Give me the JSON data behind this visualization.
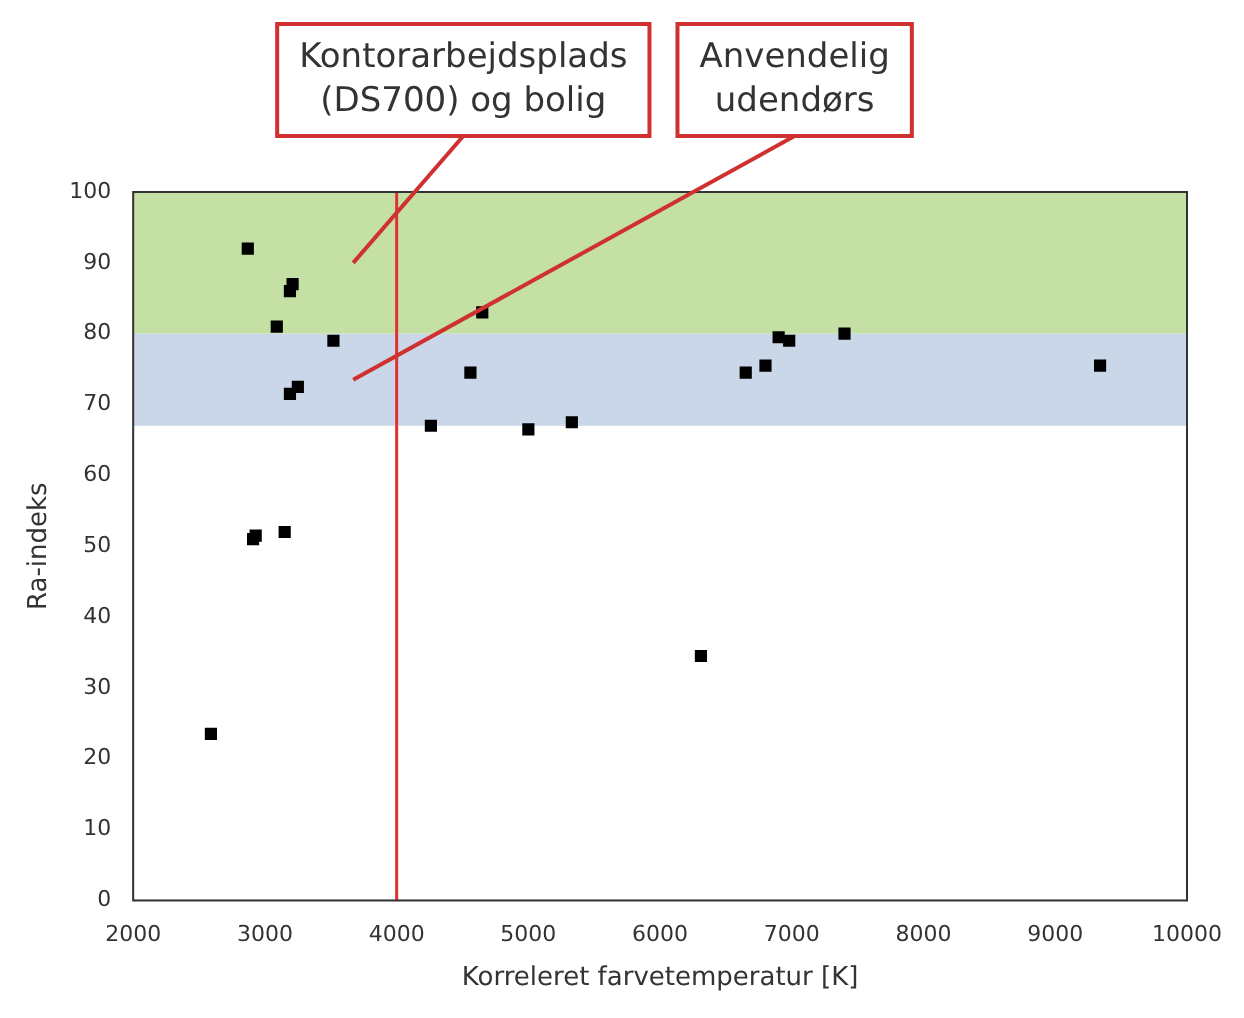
{
  "chart_data": {
    "type": "scatter",
    "xlabel": "Korreleret farvetemperatur [K]",
    "ylabel": "Ra-indeks",
    "x": [
      2590,
      2870,
      2910,
      2930,
      3090,
      3150,
      3190,
      3210,
      3190,
      3250,
      3520,
      4260,
      4560,
      4650,
      5000,
      5330,
      6310,
      6650,
      6800,
      6900,
      6980,
      7400,
      9340
    ],
    "values": [
      23.5,
      92,
      51,
      51.5,
      81,
      52,
      86,
      87,
      71.5,
      72.5,
      79,
      67,
      74.5,
      83,
      66.5,
      67.5,
      34.5,
      74.5,
      75.5,
      79.5,
      79,
      80,
      75.5
    ],
    "color": "#000000",
    "marker": "square",
    "xlim": [
      2000,
      10000
    ],
    "xticks": [
      2000,
      3000,
      4000,
      5000,
      6000,
      7000,
      8000,
      9000,
      10000
    ],
    "ylim": [
      0,
      100
    ],
    "yticks": [
      0,
      10,
      20,
      30,
      40,
      50,
      60,
      70,
      80,
      90,
      100
    ],
    "grid": false,
    "legend": false,
    "bands": [
      {
        "axis": "y",
        "from": 80,
        "to": 100,
        "label": "Kontorarbejdsplads (DS700) og bolig",
        "color": "#c4e0a4"
      },
      {
        "axis": "y",
        "from": 67,
        "to": 80,
        "label": "Anvendelig udendørs",
        "color": "#c9d7e8"
      }
    ],
    "ref_lines": [
      {
        "axis": "x",
        "value": 4000,
        "color": "#e03030"
      }
    ]
  }
}
